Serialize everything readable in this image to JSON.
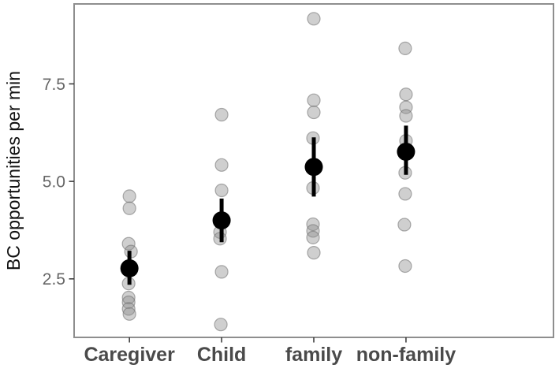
{
  "figure": {
    "kind": "jittered dot plot with mean and 95% CI error bars (ggplot style)",
    "background": "#ffffff"
  },
  "chart_data": {
    "type": "scatter",
    "title": "",
    "xlabel": "",
    "ylabel": "BC opportunities per min",
    "categories": [
      "Caregiver",
      "Child",
      "family",
      "non-family"
    ],
    "yticks": [
      2.5,
      5.0,
      7.5
    ],
    "ytick_labels": [
      "2.5",
      "5.0",
      "7.5"
    ],
    "ylim": [
      1.0,
      9.55
    ],
    "grid": "off",
    "legend": "none",
    "series": [
      {
        "name": "Caregiver",
        "points": [
          {
            "v": 4.62,
            "dx": 0
          },
          {
            "v": 4.31,
            "dx": 0
          },
          {
            "v": 3.4,
            "dx": -1
          },
          {
            "v": 3.2,
            "dx": 2
          },
          {
            "v": 2.38,
            "dx": -1
          },
          {
            "v": 2.02,
            "dx": -1
          },
          {
            "v": 1.9,
            "dx": -1
          },
          {
            "v": 1.73,
            "dx": -1
          },
          {
            "v": 1.6,
            "dx": 0
          }
        ],
        "mean": 2.77,
        "ci_low": 2.35,
        "ci_high": 3.22
      },
      {
        "name": "Child",
        "points": [
          {
            "v": 6.71,
            "dx": 0
          },
          {
            "v": 5.42,
            "dx": 0
          },
          {
            "v": 4.77,
            "dx": 0
          },
          {
            "v": 3.7,
            "dx": -2
          },
          {
            "v": 3.53,
            "dx": -2
          },
          {
            "v": 2.68,
            "dx": 0
          },
          {
            "v": 1.33,
            "dx": -1
          }
        ],
        "mean": 4.0,
        "ci_low": 3.44,
        "ci_high": 4.56
      },
      {
        "name": "family",
        "points": [
          {
            "v": 9.17,
            "dx": 0
          },
          {
            "v": 7.08,
            "dx": 0
          },
          {
            "v": 6.77,
            "dx": 0
          },
          {
            "v": 6.11,
            "dx": -1
          },
          {
            "v": 4.83,
            "dx": -1
          },
          {
            "v": 3.9,
            "dx": -1
          },
          {
            "v": 3.73,
            "dx": -1
          },
          {
            "v": 3.56,
            "dx": -1
          },
          {
            "v": 3.17,
            "dx": 0
          }
        ],
        "mean": 5.37,
        "ci_low": 4.61,
        "ci_high": 6.13
      },
      {
        "name": "non-family",
        "points": [
          {
            "v": 8.41,
            "dx": -1
          },
          {
            "v": 7.23,
            "dx": 0
          },
          {
            "v": 6.9,
            "dx": 0
          },
          {
            "v": 6.68,
            "dx": 0
          },
          {
            "v": 6.04,
            "dx": 0
          },
          {
            "v": 5.22,
            "dx": -1
          },
          {
            "v": 4.68,
            "dx": -1
          },
          {
            "v": 3.89,
            "dx": -2
          },
          {
            "v": 2.83,
            "dx": -1
          }
        ],
        "mean": 5.76,
        "ci_low": 5.17,
        "ci_high": 6.43
      }
    ],
    "style": {
      "panel_border_color": "#8e8e8e",
      "point_fill": "#8c8c8c",
      "point_fill_opacity": 0.42,
      "point_stroke": "#6e6e6e",
      "point_stroke_opacity": 0.55,
      "point_radius": 8,
      "mean_color": "#000000",
      "mean_radius": 11.5,
      "errorbar_color": "#000000",
      "errorbar_width": 5,
      "tick_color": "#333333",
      "ytick_label_color": "#666666",
      "xtick_label_color": "#4a4a4a",
      "axis_title_color": "#111111"
    }
  }
}
